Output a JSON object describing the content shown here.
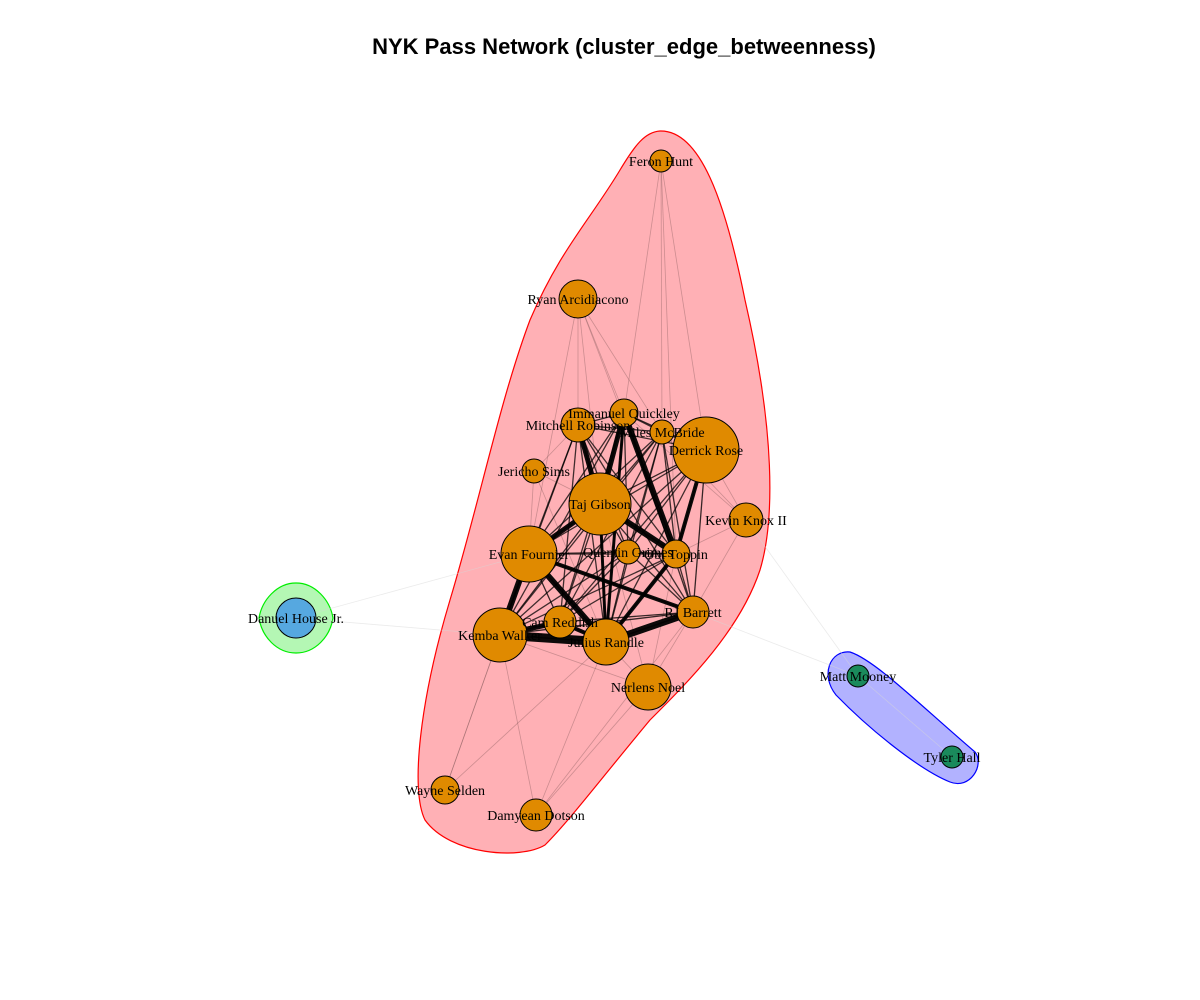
{
  "title": "NYK Pass Network (cluster_edge_betweenness)",
  "clusters": [
    {
      "id": "c1",
      "fill": "#ffb0b5",
      "stroke": "#ff0000",
      "members": [
        "Feron Hunt",
        "Ryan Arcidiacono",
        "Immanuel Quickley",
        "Mitchell Robinson",
        "Miles McBride",
        "Derrick Rose",
        "Jericho Sims",
        "Taj Gibson",
        "Kevin Knox II",
        "Evan Fournier",
        "Quentin Grimes",
        "Obi Toppin",
        "Kemba Walker",
        "Cam Reddish",
        "RJ Barrett",
        "Julius Randle",
        "Nerlens Noel",
        "Wayne Selden",
        "Damyean Dotson"
      ]
    },
    {
      "id": "c2",
      "fill": "#b4f7b4",
      "stroke": "#00ee00",
      "members": [
        "Danuel House Jr."
      ]
    },
    {
      "id": "c3",
      "fill": "#b2b2ff",
      "stroke": "#0000ff",
      "members": [
        "Matt Mooney",
        "Tyler Hall"
      ]
    }
  ],
  "nodes": [
    {
      "id": "feron",
      "label": "Feron Hunt",
      "color": "#e08a00"
    },
    {
      "id": "ryan",
      "label": "Ryan Arcidiacono",
      "color": "#e08a00"
    },
    {
      "id": "quickley",
      "label": "Immanuel Quickley",
      "color": "#e08a00"
    },
    {
      "id": "robinson",
      "label": "Mitchell Robinson",
      "color": "#e08a00"
    },
    {
      "id": "mcbride",
      "label": "Miles McBride",
      "color": "#e08a00"
    },
    {
      "id": "rose",
      "label": "Derrick Rose",
      "color": "#e08a00"
    },
    {
      "id": "sims",
      "label": "Jericho Sims",
      "color": "#e08a00"
    },
    {
      "id": "gibson",
      "label": "Taj Gibson",
      "color": "#e08a00"
    },
    {
      "id": "knox",
      "label": "Kevin Knox II",
      "color": "#e08a00"
    },
    {
      "id": "fournier",
      "label": "Evan Fournier",
      "color": "#e08a00"
    },
    {
      "id": "grimes",
      "label": "Quentin Grimes",
      "color": "#e08a00"
    },
    {
      "id": "toppin",
      "label": "Obi Toppin",
      "color": "#e08a00"
    },
    {
      "id": "kemba",
      "label": "Kemba Walker",
      "color": "#e08a00"
    },
    {
      "id": "reddish",
      "label": "Cam Reddish",
      "color": "#e08a00"
    },
    {
      "id": "barrett",
      "label": "RJ Barrett",
      "color": "#e08a00"
    },
    {
      "id": "randle",
      "label": "Julius Randle",
      "color": "#e08a00"
    },
    {
      "id": "noel",
      "label": "Nerlens Noel",
      "color": "#e08a00"
    },
    {
      "id": "selden",
      "label": "Wayne Selden",
      "color": "#e08a00"
    },
    {
      "id": "dotson",
      "label": "Damyean Dotson",
      "color": "#e08a00"
    },
    {
      "id": "house",
      "label": "Danuel House Jr.",
      "color": "#56a8e0"
    },
    {
      "id": "mooney",
      "label": "Matt Mooney",
      "color": "#1a8a5c"
    },
    {
      "id": "hall",
      "label": "Tyler Hall",
      "color": "#1a8a5c"
    }
  ],
  "heavy_edges": [
    [
      "kemba",
      "randle"
    ],
    [
      "kemba",
      "fournier"
    ],
    [
      "kemba",
      "reddish"
    ],
    [
      "randle",
      "barrett"
    ],
    [
      "randle",
      "fournier"
    ],
    [
      "fournier",
      "gibson"
    ],
    [
      "gibson",
      "toppin"
    ],
    [
      "quickley",
      "toppin"
    ],
    [
      "quickley",
      "gibson"
    ],
    [
      "robinson",
      "gibson"
    ],
    [
      "rose",
      "toppin"
    ],
    [
      "fournier",
      "barrett"
    ],
    [
      "randle",
      "toppin"
    ],
    [
      "reddish",
      "randle"
    ],
    [
      "quickley",
      "randle"
    ],
    [
      "gibson",
      "randle"
    ]
  ],
  "light_edges": [
    [
      "feron",
      "quickley"
    ],
    [
      "feron",
      "mcbride"
    ],
    [
      "feron",
      "rose"
    ],
    [
      "feron",
      "toppin"
    ],
    [
      "ryan",
      "quickley"
    ],
    [
      "ryan",
      "robinson"
    ],
    [
      "ryan",
      "toppin"
    ],
    [
      "ryan",
      "mcbride"
    ],
    [
      "ryan",
      "gibson"
    ],
    [
      "ryan",
      "fournier"
    ],
    [
      "sims",
      "gibson"
    ],
    [
      "sims",
      "robinson"
    ],
    [
      "sims",
      "fournier"
    ],
    [
      "sims",
      "randle"
    ],
    [
      "knox",
      "rose"
    ],
    [
      "knox",
      "toppin"
    ],
    [
      "knox",
      "barrett"
    ],
    [
      "knox",
      "mcbride"
    ],
    [
      "knox",
      "quickley"
    ],
    [
      "noel",
      "randle"
    ],
    [
      "noel",
      "barrett"
    ],
    [
      "noel",
      "kemba"
    ],
    [
      "noel",
      "toppin"
    ],
    [
      "noel",
      "gibson"
    ],
    [
      "selden",
      "kemba"
    ],
    [
      "selden",
      "randle"
    ],
    [
      "selden",
      "fournier"
    ],
    [
      "dotson",
      "kemba"
    ],
    [
      "dotson",
      "randle"
    ],
    [
      "dotson",
      "noel"
    ],
    [
      "dotson",
      "barrett"
    ],
    [
      "grimes",
      "randle"
    ],
    [
      "grimes",
      "gibson"
    ],
    [
      "grimes",
      "toppin"
    ],
    [
      "robinson",
      "mcbride"
    ],
    [
      "rose",
      "gibson"
    ],
    [
      "rose",
      "barrett"
    ],
    [
      "robinson",
      "quickley"
    ],
    [
      "mcbride",
      "rose"
    ],
    [
      "quickley",
      "rose"
    ],
    [
      "kemba",
      "gibson"
    ],
    [
      "kemba",
      "barrett"
    ],
    [
      "reddish",
      "fournier"
    ],
    [
      "reddish",
      "barrett"
    ],
    [
      "house",
      "fournier"
    ],
    [
      "house",
      "kemba"
    ],
    [
      "mooney",
      "barrett"
    ],
    [
      "mooney",
      "knox"
    ],
    [
      "mooney",
      "hall"
    ]
  ]
}
